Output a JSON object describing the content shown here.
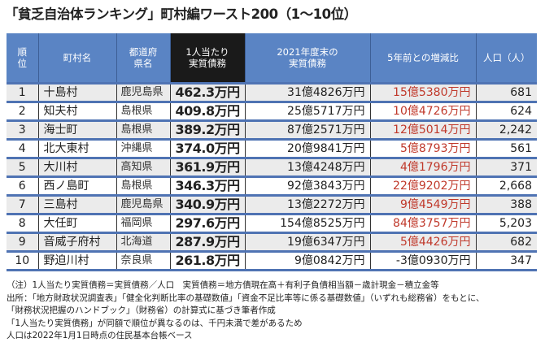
{
  "title": "「貧乏自治体ランキング」町村編ワースト200（1〜10位）",
  "headers": [
    "順位",
    "町村名",
    "都道府県名",
    "1人当たり実質債務",
    "2021年度末の実質債務",
    "5年前との増減比",
    "人口（人）"
  ],
  "rows": [
    [
      "1",
      "十島村",
      "鹿児島県",
      "462.3万円",
      "31億4826万円",
      "15億5380万円",
      "681"
    ],
    [
      "2",
      "知夫村",
      "島根県",
      "409.8万円",
      "25億5717万円",
      "10億4726万円",
      "624"
    ],
    [
      "3",
      "海士町",
      "島根県",
      "389.2万円",
      "87億2571万円",
      "12億5014万円",
      "2,242"
    ],
    [
      "4",
      "北大東村",
      "沖縄県",
      "374.0万円",
      "20億9841万円",
      "5億8793万円",
      "561"
    ],
    [
      "5",
      "大川村",
      "高知県",
      "361.9万円",
      "13億4248万円",
      "4億1796万円",
      "371"
    ],
    [
      "6",
      "西ノ島町",
      "島根県",
      "346.3万円",
      "92億3843万円",
      "22億9202万円",
      "2,668"
    ],
    [
      "7",
      "三島村",
      "鹿児島県",
      "340.9万円",
      "13億2272万円",
      "9億4549万円",
      "388"
    ],
    [
      "8",
      "大任町",
      "福岡県",
      "297.6万円",
      "154億8525万円",
      "84億3757万円",
      "5,203"
    ],
    [
      "9",
      "音威子府村",
      "北海道",
      "287.9万円",
      "19億6347万円",
      "5億4426万円",
      "682"
    ],
    [
      "10",
      "野迫川村",
      "奈良県",
      "261.8万円",
      "9億0842万円",
      "-3億0930万円",
      "347"
    ]
  ],
  "notes": [
    "（注）1人当たり実質債務＝実質債務／人口　実質債務＝地方債現在高＋有利子負債相当額－歳計現金－積立金等",
    "出所：「地方財政状況調査表」「健全化判断比率の基礎数値」「資金不足比率等に係る基礎数値」（いずれも総務省）をもとに、",
    "「財務状況把握のハンドブック」（財務省）の計算式に基づき筆者作成",
    "「1人当たり実質債務」が同額で順位が異なるのは、千円未満で差があるため",
    "人口は2022年1月1日時点の住民基本台帳ベース"
  ],
  "colors": {
    "header": "#5a84c4",
    "highlight_header": "#1a1a1a",
    "increase": "#c0392b",
    "row_alt": "#ebebeb"
  }
}
